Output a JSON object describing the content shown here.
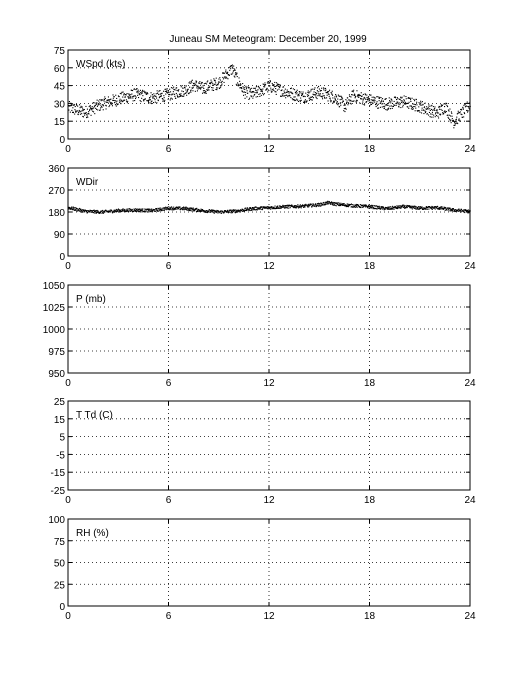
{
  "title": "Juneau SM Meteogram:   December 20, 1999",
  "chart_data": [
    {
      "type": "scatter",
      "label": "WSpd (kts)",
      "xlim": [
        0,
        24
      ],
      "ylim": [
        0,
        75
      ],
      "xticks": [
        0,
        6,
        12,
        18,
        24
      ],
      "yticks": [
        0,
        15,
        30,
        45,
        60,
        75
      ],
      "grid": true,
      "series": [
        {
          "x": [
            0,
            1,
            2,
            3,
            4,
            5,
            6,
            7,
            7.5,
            8,
            9,
            9.5,
            9.8,
            10,
            10.5,
            11,
            12,
            13,
            14,
            15,
            16,
            16.5,
            17,
            18,
            19,
            20,
            21,
            22,
            22.5,
            23,
            23.5,
            24
          ],
          "values": [
            27,
            23,
            30,
            34,
            38,
            35,
            38,
            42,
            46,
            43,
            48,
            56,
            60,
            52,
            40,
            38,
            45,
            40,
            36,
            40,
            35,
            28,
            37,
            33,
            30,
            32,
            28,
            22,
            28,
            15,
            22,
            30
          ]
        }
      ]
    },
    {
      "type": "scatter",
      "label": "WDir",
      "xlim": [
        0,
        24
      ],
      "ylim": [
        0,
        360
      ],
      "xticks": [
        0,
        6,
        12,
        18,
        24
      ],
      "yticks": [
        0,
        90,
        180,
        270,
        360
      ],
      "grid": true,
      "series": [
        {
          "x": [
            0,
            1,
            2,
            3,
            4,
            5,
            6,
            7,
            8,
            9,
            10,
            11,
            12,
            13,
            14,
            15,
            15.5,
            16,
            17,
            18,
            19,
            20,
            21,
            22,
            23,
            24
          ],
          "values": [
            200,
            185,
            182,
            188,
            190,
            188,
            198,
            196,
            188,
            182,
            186,
            196,
            200,
            204,
            206,
            212,
            220,
            214,
            208,
            204,
            196,
            204,
            198,
            200,
            190,
            184
          ]
        }
      ]
    },
    {
      "type": "line",
      "label": "P (mb)",
      "xlim": [
        0,
        24
      ],
      "ylim": [
        950,
        1050
      ],
      "xticks": [
        0,
        6,
        12,
        18,
        24
      ],
      "yticks": [
        950,
        975,
        1000,
        1025,
        1050
      ],
      "grid": true,
      "series": []
    },
    {
      "type": "line",
      "label": "T Td (C)",
      "xlim": [
        0,
        24
      ],
      "ylim": [
        -25,
        25
      ],
      "xticks": [
        0,
        6,
        12,
        18,
        24
      ],
      "yticks": [
        -25,
        -15,
        -5,
        5,
        15,
        25
      ],
      "grid": true,
      "series": []
    },
    {
      "type": "line",
      "label": "RH (%)",
      "xlim": [
        0,
        24
      ],
      "ylim": [
        0,
        100
      ],
      "xticks": [
        0,
        6,
        12,
        18,
        24
      ],
      "yticks": [
        0,
        25,
        50,
        75,
        100
      ],
      "grid": true,
      "series": []
    }
  ]
}
